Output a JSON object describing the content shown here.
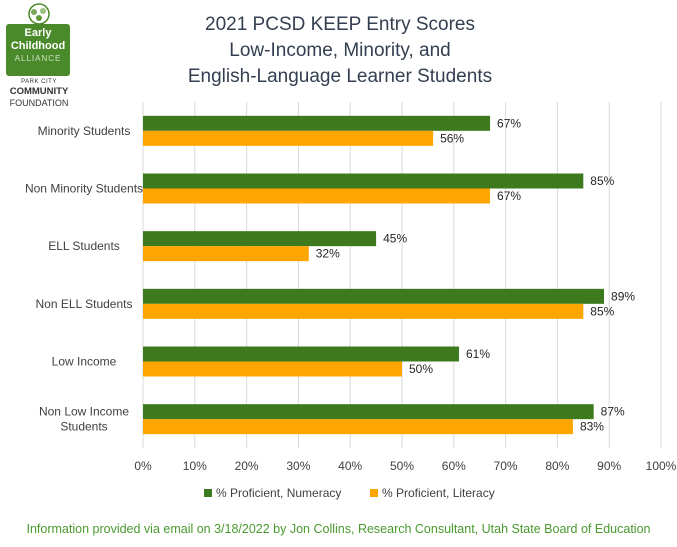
{
  "logo": {
    "line1": "Early",
    "line2": "Childhood",
    "line3": "ALLIANCE",
    "sub1": "PARK CITY",
    "sub2": "COMMUNITY",
    "sub3": "FOUNDATION"
  },
  "title": {
    "line1": "2021 PCSD KEEP Entry Scores",
    "line2": "Low-Income, Minority, and",
    "line3": "English-Language Learner Students"
  },
  "chart_data": {
    "type": "bar",
    "orientation": "horizontal",
    "categories": [
      "Minority Students",
      "Non Minority Students",
      "ELL Students",
      "Non ELL Students",
      "Low Income",
      "Non Low Income Students"
    ],
    "series": [
      {
        "name": "% Proficient, Numeracy",
        "color": "#3d7a1e",
        "values": [
          67,
          85,
          45,
          89,
          61,
          87
        ]
      },
      {
        "name": "% Proficient, Literacy",
        "color": "#ffa500",
        "values": [
          56,
          67,
          32,
          85,
          50,
          83
        ]
      }
    ],
    "xlim": [
      0,
      100
    ],
    "xticks": [
      "0%",
      "10%",
      "20%",
      "30%",
      "40%",
      "50%",
      "60%",
      "70%",
      "80%",
      "90%",
      "100%"
    ],
    "value_suffix": "%",
    "grid": true,
    "legend": "bottom"
  },
  "footer": "Information provided via email on 3/18/2022 by Jon Collins, Research Consultant, Utah State Board of Education"
}
